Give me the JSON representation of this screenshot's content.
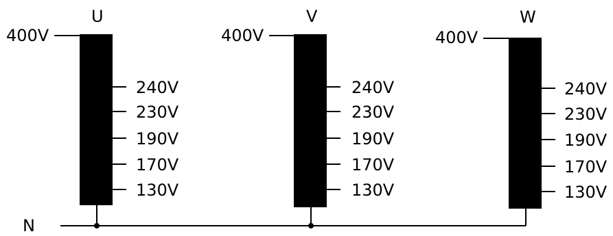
{
  "diagram": {
    "phases": [
      {
        "name": "U",
        "input_voltage": "400V",
        "taps": [
          "240V",
          "230V",
          "190V",
          "170V",
          "130V"
        ]
      },
      {
        "name": "V",
        "input_voltage": "400V",
        "taps": [
          "240V",
          "230V",
          "190V",
          "170V",
          "130V"
        ]
      },
      {
        "name": "W",
        "input_voltage": "400V",
        "taps": [
          "240V",
          "230V",
          "190V",
          "170V",
          "130V"
        ]
      }
    ],
    "neutral_label": "N"
  }
}
